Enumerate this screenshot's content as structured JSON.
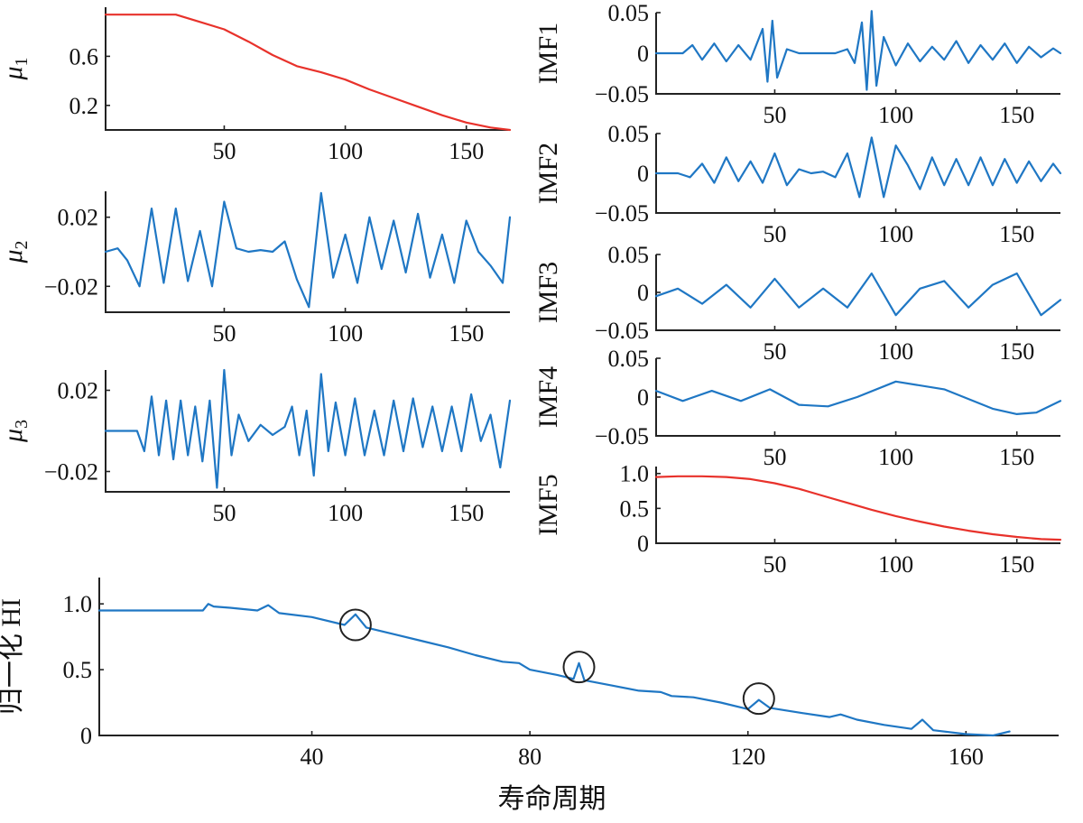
{
  "colors": {
    "blue": "#1f77c4",
    "red": "#e8322b",
    "axis": "#222222"
  },
  "chart_data": [
    {
      "id": "mu1",
      "type": "line",
      "ylabel": "μ1",
      "xlabel": "",
      "xlim": [
        1,
        168
      ],
      "ylim": [
        0,
        1.0
      ],
      "xticks": [
        50,
        100,
        150
      ],
      "xticklabels": [
        "50",
        "100",
        "150"
      ],
      "yticks": [
        0.2,
        0.6
      ],
      "yticklabels": [
        "0.2",
        "0.6"
      ],
      "grid": false,
      "series": [
        {
          "name": "μ1",
          "color": "red",
          "x": [
            1,
            10,
            20,
            30,
            40,
            50,
            60,
            70,
            80,
            90,
            100,
            110,
            120,
            130,
            140,
            150,
            160,
            168
          ],
          "y": [
            0.94,
            0.94,
            0.94,
            0.94,
            0.88,
            0.82,
            0.72,
            0.61,
            0.52,
            0.47,
            0.41,
            0.33,
            0.26,
            0.19,
            0.12,
            0.06,
            0.02,
            0.0
          ]
        }
      ]
    },
    {
      "id": "mu2",
      "type": "line",
      "ylabel": "μ2",
      "xlabel": "",
      "xlim": [
        1,
        168
      ],
      "ylim": [
        -0.035,
        0.035
      ],
      "xticks": [
        50,
        100,
        150
      ],
      "xticklabels": [
        "50",
        "100",
        "150"
      ],
      "yticks": [
        -0.02,
        0.02
      ],
      "yticklabels": [
        "−0.02",
        "0.02"
      ],
      "grid": false,
      "series": [
        {
          "name": "μ2",
          "color": "blue",
          "x": [
            1,
            6,
            10,
            15,
            20,
            25,
            30,
            35,
            40,
            45,
            50,
            55,
            60,
            65,
            70,
            75,
            80,
            85,
            90,
            95,
            100,
            105,
            110,
            115,
            120,
            125,
            130,
            135,
            140,
            145,
            150,
            155,
            160,
            165,
            168
          ],
          "y": [
            0.0,
            0.002,
            -0.005,
            -0.02,
            0.025,
            -0.018,
            0.025,
            -0.017,
            0.012,
            -0.02,
            0.029,
            0.002,
            0.0,
            0.001,
            0.0,
            0.006,
            -0.016,
            -0.032,
            0.034,
            -0.015,
            0.01,
            -0.018,
            0.02,
            -0.01,
            0.018,
            -0.012,
            0.022,
            -0.015,
            0.01,
            -0.018,
            0.018,
            0.0,
            -0.008,
            -0.018,
            0.02
          ]
        }
      ]
    },
    {
      "id": "mu3",
      "type": "line",
      "ylabel": "μ3",
      "xlabel": "",
      "xlim": [
        1,
        168
      ],
      "ylim": [
        -0.03,
        0.03
      ],
      "xticks": [
        50,
        100,
        150
      ],
      "xticklabels": [
        "50",
        "100",
        "150"
      ],
      "yticks": [
        -0.02,
        0.02
      ],
      "yticklabels": [
        "−0.02",
        "0.02"
      ],
      "grid": false,
      "series": [
        {
          "name": "μ3",
          "color": "blue",
          "x": [
            1,
            8,
            14,
            17,
            20,
            23,
            26,
            29,
            32,
            35,
            38,
            41,
            44,
            47,
            50,
            53,
            56,
            60,
            65,
            70,
            75,
            78,
            81,
            84,
            87,
            90,
            93,
            96,
            100,
            104,
            108,
            112,
            116,
            120,
            124,
            128,
            132,
            136,
            140,
            144,
            148,
            152,
            156,
            160,
            164,
            168
          ],
          "y": [
            0.0,
            0.0,
            0.0,
            -0.01,
            0.017,
            -0.012,
            0.015,
            -0.014,
            0.015,
            -0.012,
            0.012,
            -0.015,
            0.015,
            -0.028,
            0.03,
            -0.012,
            0.008,
            -0.005,
            0.003,
            -0.002,
            0.002,
            0.012,
            -0.012,
            0.01,
            -0.022,
            0.028,
            -0.01,
            0.014,
            -0.012,
            0.016,
            -0.012,
            0.01,
            -0.012,
            0.015,
            -0.01,
            0.016,
            -0.008,
            0.012,
            -0.01,
            0.012,
            -0.01,
            0.018,
            -0.005,
            0.008,
            -0.018,
            0.015
          ]
        }
      ]
    },
    {
      "id": "imf1",
      "type": "line",
      "ylabel": "IMF1",
      "xlabel": "",
      "xlim": [
        1,
        168
      ],
      "ylim": [
        -0.05,
        0.05
      ],
      "xticks": [
        50,
        100,
        150
      ],
      "xticklabels": [
        "50",
        "100",
        "150"
      ],
      "yticks": [
        -0.05,
        0,
        0.05
      ],
      "yticklabels": [
        "−0.05",
        "0",
        "0.05"
      ],
      "grid": false,
      "series": [
        {
          "name": "IMF1",
          "color": "blue",
          "x": [
            1,
            12,
            16,
            20,
            25,
            30,
            35,
            40,
            45,
            47,
            49,
            51,
            55,
            60,
            75,
            80,
            83,
            86,
            88,
            90,
            92,
            95,
            100,
            105,
            110,
            115,
            120,
            125,
            130,
            135,
            140,
            145,
            150,
            155,
            160,
            165,
            168
          ],
          "y": [
            0.0,
            0.0,
            0.01,
            -0.008,
            0.012,
            -0.01,
            0.01,
            -0.008,
            0.03,
            -0.035,
            0.04,
            -0.03,
            0.005,
            0.0,
            0.0,
            0.005,
            -0.012,
            0.038,
            -0.045,
            0.052,
            -0.04,
            0.02,
            -0.015,
            0.012,
            -0.01,
            0.008,
            -0.008,
            0.015,
            -0.012,
            0.01,
            -0.008,
            0.012,
            -0.012,
            0.008,
            -0.005,
            0.006,
            0.0
          ]
        }
      ]
    },
    {
      "id": "imf2",
      "type": "line",
      "ylabel": "IMF2",
      "xlabel": "",
      "xlim": [
        1,
        168
      ],
      "ylim": [
        -0.05,
        0.05
      ],
      "xticks": [
        50,
        100,
        150
      ],
      "xticklabels": [
        "50",
        "100",
        "150"
      ],
      "yticks": [
        -0.05,
        0,
        0.05
      ],
      "yticklabels": [
        "−0.05",
        "0",
        "0.05"
      ],
      "grid": false,
      "series": [
        {
          "name": "IMF2",
          "color": "blue",
          "x": [
            1,
            10,
            15,
            20,
            25,
            30,
            35,
            40,
            45,
            50,
            55,
            60,
            65,
            70,
            75,
            80,
            85,
            90,
            95,
            100,
            105,
            110,
            115,
            120,
            125,
            130,
            135,
            140,
            145,
            150,
            155,
            160,
            165,
            168
          ],
          "y": [
            0.0,
            0.0,
            -0.005,
            0.012,
            -0.012,
            0.02,
            -0.01,
            0.015,
            -0.012,
            0.025,
            -0.015,
            0.005,
            0.0,
            0.002,
            -0.005,
            0.025,
            -0.03,
            0.045,
            -0.03,
            0.035,
            0.01,
            -0.02,
            0.02,
            -0.015,
            0.018,
            -0.015,
            0.02,
            -0.015,
            0.018,
            -0.012,
            0.015,
            -0.01,
            0.012,
            0.0
          ]
        }
      ]
    },
    {
      "id": "imf3",
      "type": "line",
      "ylabel": "IMF3",
      "xlabel": "",
      "xlim": [
        1,
        168
      ],
      "ylim": [
        -0.05,
        0.05
      ],
      "xticks": [
        50,
        100,
        150
      ],
      "xticklabels": [
        "50",
        "100",
        "150"
      ],
      "yticks": [
        -0.05,
        0,
        0.05
      ],
      "yticklabels": [
        "−0.05",
        "0",
        "0.05"
      ],
      "grid": false,
      "series": [
        {
          "name": "IMF3",
          "color": "blue",
          "x": [
            1,
            10,
            20,
            30,
            40,
            50,
            60,
            70,
            80,
            90,
            100,
            110,
            120,
            130,
            140,
            150,
            160,
            168
          ],
          "y": [
            -0.005,
            0.005,
            -0.015,
            0.01,
            -0.02,
            0.018,
            -0.02,
            0.005,
            -0.02,
            0.025,
            -0.03,
            0.005,
            0.015,
            -0.02,
            0.01,
            0.025,
            -0.03,
            -0.01
          ]
        }
      ]
    },
    {
      "id": "imf4",
      "type": "line",
      "ylabel": "IMF4",
      "xlabel": "",
      "xlim": [
        1,
        168
      ],
      "ylim": [
        -0.05,
        0.05
      ],
      "xticks": [
        50,
        100,
        150
      ],
      "xticklabels": [
        "50",
        "100",
        "150"
      ],
      "yticks": [
        -0.05,
        0,
        0.05
      ],
      "yticklabels": [
        "−0.05",
        "0",
        "0.05"
      ],
      "grid": false,
      "series": [
        {
          "name": "IMF4",
          "color": "blue",
          "x": [
            1,
            12,
            24,
            36,
            48,
            60,
            72,
            84,
            100,
            120,
            140,
            150,
            158,
            168
          ],
          "y": [
            0.008,
            -0.005,
            0.008,
            -0.005,
            0.01,
            -0.01,
            -0.012,
            0.0,
            0.02,
            0.01,
            -0.015,
            -0.022,
            -0.02,
            -0.005
          ]
        }
      ]
    },
    {
      "id": "imf5",
      "type": "line",
      "ylabel": "IMF5",
      "xlabel": "",
      "xlim": [
        1,
        168
      ],
      "ylim": [
        0,
        1.1
      ],
      "xticks": [
        50,
        100,
        150
      ],
      "xticklabels": [
        "50",
        "100",
        "150"
      ],
      "yticks": [
        0,
        0.5,
        1.0
      ],
      "yticklabels": [
        "0",
        "0.5",
        "1.0"
      ],
      "grid": false,
      "series": [
        {
          "name": "IMF5",
          "color": "red",
          "x": [
            1,
            10,
            20,
            30,
            40,
            50,
            60,
            70,
            80,
            90,
            100,
            110,
            120,
            130,
            140,
            150,
            160,
            168
          ],
          "y": [
            0.95,
            0.96,
            0.96,
            0.95,
            0.92,
            0.86,
            0.78,
            0.68,
            0.58,
            0.48,
            0.39,
            0.31,
            0.24,
            0.18,
            0.13,
            0.09,
            0.06,
            0.05
          ]
        }
      ]
    },
    {
      "id": "hi",
      "type": "line",
      "ylabel": "归一化 HI",
      "xlabel": "寿命周期",
      "xlim": [
        1,
        177
      ],
      "ylim": [
        0,
        1.2
      ],
      "xticks": [
        40,
        80,
        120,
        160
      ],
      "xticklabels": [
        "40",
        "80",
        "120",
        "160"
      ],
      "yticks": [
        0,
        0.5,
        1.0
      ],
      "yticklabels": [
        "0",
        "0.5",
        "1.0"
      ],
      "grid": false,
      "annotations": [
        {
          "type": "circle",
          "x": 48,
          "y": 0.84
        },
        {
          "type": "circle",
          "x": 89,
          "y": 0.52
        },
        {
          "type": "circle",
          "x": 122,
          "y": 0.28
        }
      ],
      "series": [
        {
          "name": "HI",
          "color": "blue",
          "x": [
            1,
            10,
            20,
            21,
            22,
            25,
            30,
            32,
            34,
            40,
            46,
            48,
            50,
            55,
            60,
            65,
            70,
            75,
            78,
            80,
            85,
            88,
            89,
            90,
            95,
            100,
            104,
            106,
            110,
            115,
            120,
            122,
            124,
            130,
            135,
            137,
            140,
            145,
            150,
            152,
            154,
            160,
            165,
            168
          ],
          "y": [
            0.95,
            0.95,
            0.95,
            1.0,
            0.98,
            0.97,
            0.95,
            0.99,
            0.93,
            0.9,
            0.84,
            0.92,
            0.82,
            0.77,
            0.72,
            0.67,
            0.61,
            0.56,
            0.55,
            0.5,
            0.46,
            0.43,
            0.55,
            0.42,
            0.38,
            0.34,
            0.33,
            0.3,
            0.29,
            0.25,
            0.2,
            0.27,
            0.21,
            0.17,
            0.14,
            0.16,
            0.12,
            0.08,
            0.05,
            0.12,
            0.04,
            0.01,
            0.0,
            0.03
          ]
        }
      ]
    }
  ]
}
